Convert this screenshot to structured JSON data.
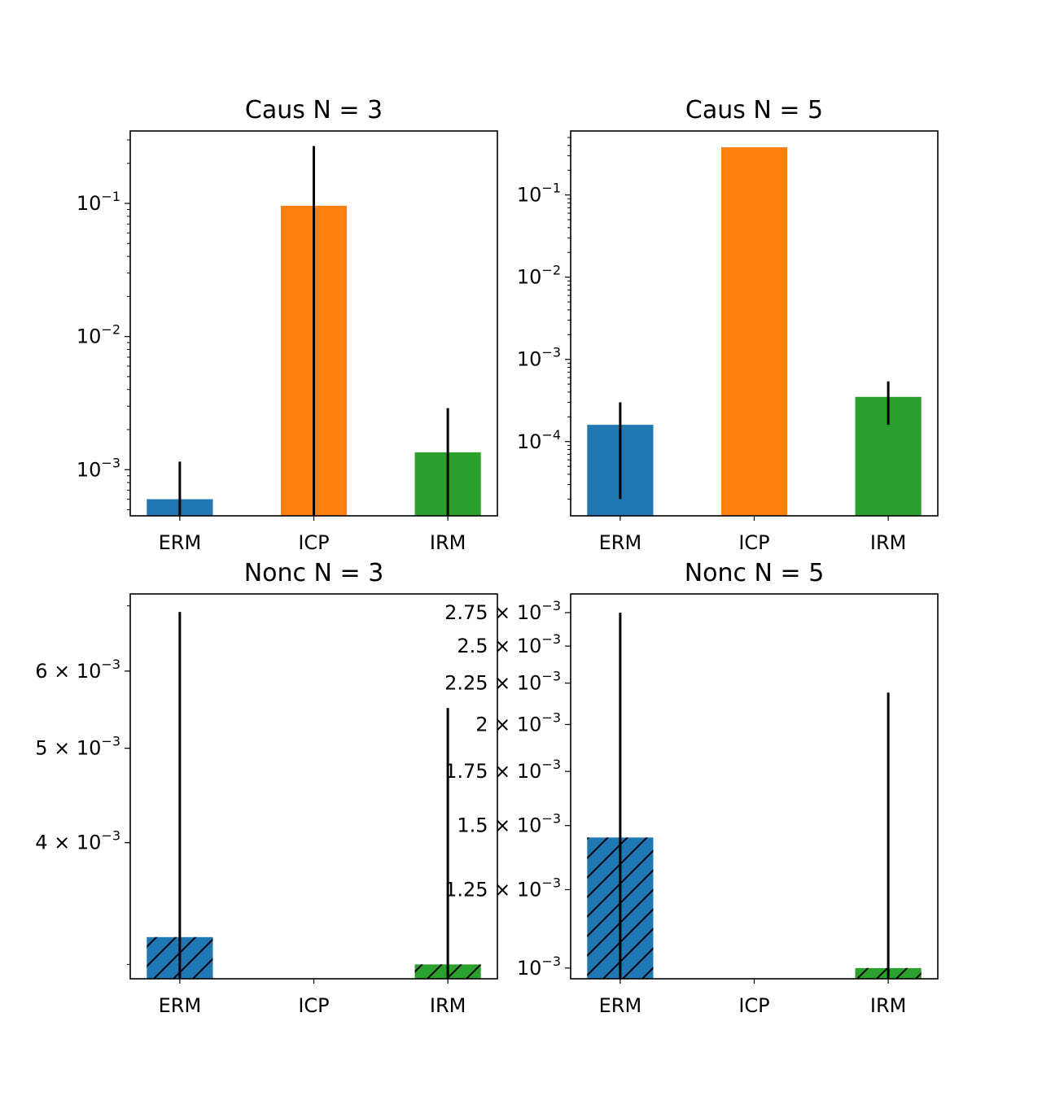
{
  "chart_data": [
    {
      "type": "bar",
      "title": "Caus N = 3",
      "yscale": "log",
      "ylim": [
        0.00045,
        0.35
      ],
      "categories": [
        "ERM",
        "ICP",
        "IRM"
      ],
      "values": [
        0.0006,
        0.096,
        0.00135
      ],
      "error_low": [
        0.00045,
        0.00045,
        0.00045
      ],
      "error_high": [
        0.00115,
        0.27,
        0.0029
      ],
      "colors": [
        "#1f77b4",
        "#ff7f0e",
        "#2ca02c"
      ],
      "hatch": false,
      "yticks": [
        {
          "value": 0.1,
          "base": "10",
          "exp": "−1"
        },
        {
          "value": 0.01,
          "base": "10",
          "exp": "−2"
        },
        {
          "value": 0.001,
          "base": "10",
          "exp": "−3"
        }
      ]
    },
    {
      "type": "bar",
      "title": "Caus N = 5",
      "yscale": "log",
      "ylim": [
        1.25e-05,
        0.6
      ],
      "categories": [
        "ERM",
        "ICP",
        "IRM"
      ],
      "values": [
        0.00016,
        0.38,
        0.00035
      ],
      "error_low": [
        2e-05,
        0.38,
        0.00016
      ],
      "error_high": [
        0.0003,
        0.38,
        0.00054
      ],
      "colors": [
        "#1f77b4",
        "#ff7f0e",
        "#2ca02c"
      ],
      "hatch": false,
      "yticks": [
        {
          "value": 0.1,
          "base": "10",
          "exp": "−1"
        },
        {
          "value": 0.01,
          "base": "10",
          "exp": "−2"
        },
        {
          "value": 0.001,
          "base": "10",
          "exp": "−3"
        },
        {
          "value": 0.0001,
          "base": "10",
          "exp": "−4"
        }
      ]
    },
    {
      "type": "bar",
      "title": "Nonc N = 3",
      "yscale": "log",
      "ylim": [
        0.0029,
        0.0072
      ],
      "categories": [
        "ERM",
        "ICP",
        "IRM"
      ],
      "values": [
        0.0032,
        0.0029,
        0.003
      ],
      "error_low": [
        0.0029,
        0.0029,
        0.0029
      ],
      "error_high": [
        0.0069,
        0.0029,
        0.0055
      ],
      "colors": [
        "#1f77b4",
        "#ff7f0e",
        "#2ca02c"
      ],
      "hatch": true,
      "yticks": [
        {
          "value": 0.006,
          "base": "6 × 10",
          "exp": "−3"
        },
        {
          "value": 0.005,
          "base": "5 × 10",
          "exp": "−3"
        },
        {
          "value": 0.004,
          "base": "4 × 10",
          "exp": "−3"
        }
      ]
    },
    {
      "type": "bar",
      "title": "Nonc N = 5",
      "yscale": "log",
      "ylim": [
        0.00097,
        0.0029
      ],
      "categories": [
        "ERM",
        "ICP",
        "IRM"
      ],
      "values": [
        0.00145,
        0.00097,
        0.001
      ],
      "error_low": [
        0.00097,
        0.00097,
        0.00097
      ],
      "error_high": [
        0.00275,
        0.00097,
        0.00219
      ],
      "colors": [
        "#1f77b4",
        "#ff7f0e",
        "#2ca02c"
      ],
      "hatch": true,
      "yticks": [
        {
          "value": 0.00275,
          "base": "2.75 × 10",
          "exp": "−3"
        },
        {
          "value": 0.0025,
          "base": "2.5 × 10",
          "exp": "−3"
        },
        {
          "value": 0.00225,
          "base": "2.25 × 10",
          "exp": "−3"
        },
        {
          "value": 0.002,
          "base": "2 × 10",
          "exp": "−3"
        },
        {
          "value": 0.00175,
          "base": "1.75 × 10",
          "exp": "−3"
        },
        {
          "value": 0.0015,
          "base": "1.5 × 10",
          "exp": "−3"
        },
        {
          "value": 0.00125,
          "base": "1.25 × 10",
          "exp": "−3"
        },
        {
          "value": 0.001,
          "base": "10",
          "exp": "−3"
        }
      ]
    }
  ]
}
